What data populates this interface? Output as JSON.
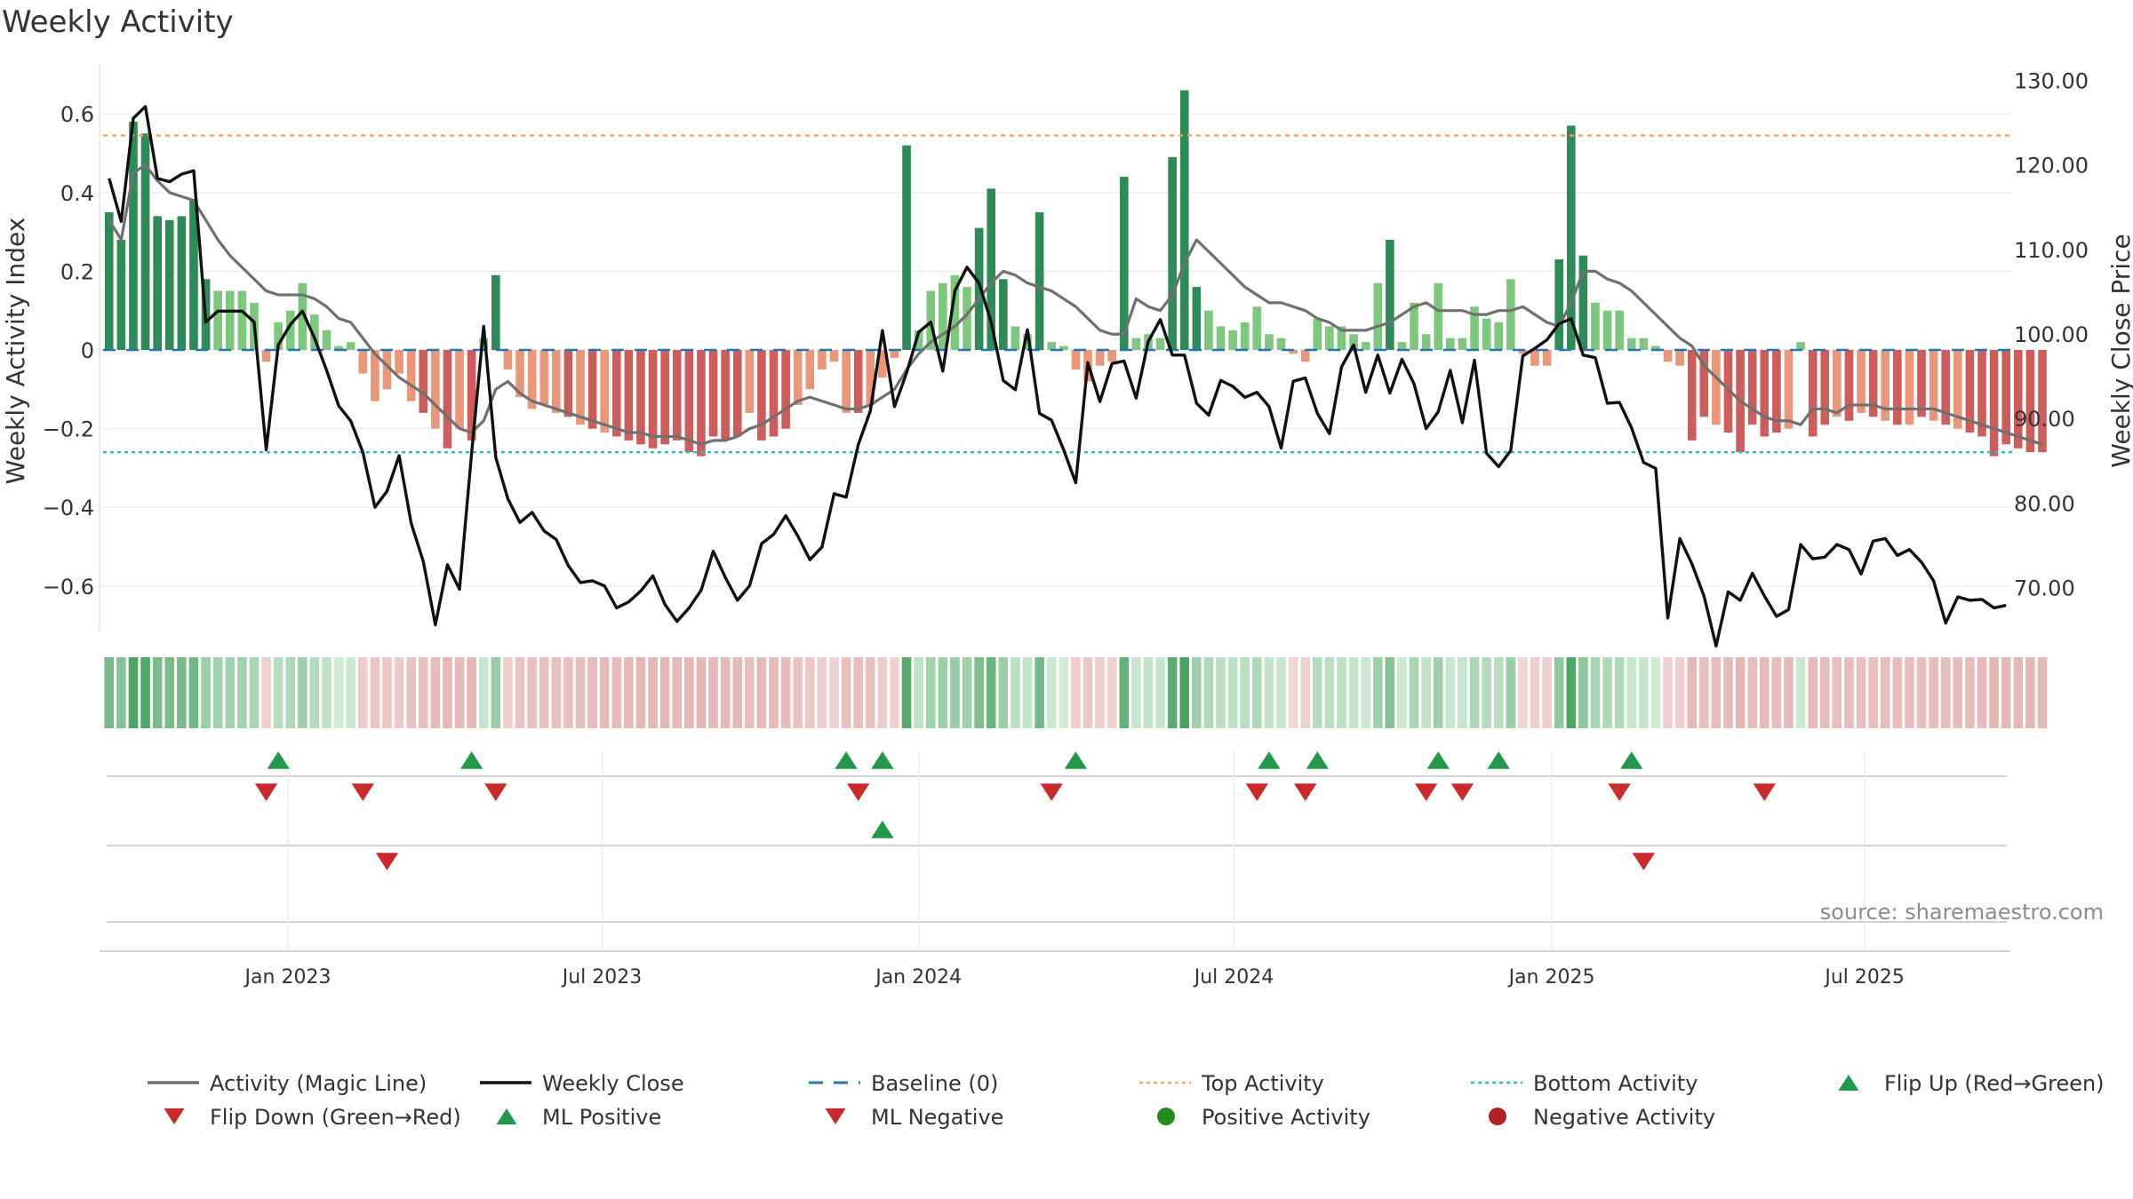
{
  "chart_data": {
    "type": "bar",
    "title": "Weekly Activity",
    "ylabel_left": "Weekly Activity Index",
    "ylabel_right": "Weekly Close Price",
    "source": "source: sharemaestro.com",
    "ylim_left": [
      -0.7,
      0.7
    ],
    "ylim_right": [
      64.0,
      132.0
    ],
    "left_ticks": [
      {
        "value": 0.6,
        "label": "0.6"
      },
      {
        "value": 0.4,
        "label": "0.4"
      },
      {
        "value": 0.2,
        "label": "0.2"
      },
      {
        "value": 0,
        "label": "0"
      },
      {
        "value": -0.2,
        "label": "−0.2"
      },
      {
        "value": -0.4,
        "label": "−0.4"
      },
      {
        "value": -0.6,
        "label": "−0.6"
      }
    ],
    "right_ticks": [
      {
        "value": 130,
        "label": "130.00"
      },
      {
        "value": 120,
        "label": "120.00"
      },
      {
        "value": 110,
        "label": "110.00"
      },
      {
        "value": 100,
        "label": "100.00"
      },
      {
        "value": 90,
        "label": "90.00"
      },
      {
        "value": 80,
        "label": "80.00"
      },
      {
        "value": 70,
        "label": "70.00"
      }
    ],
    "x_range_weeks": [
      0,
      158
    ],
    "x_ticks": [
      {
        "week": 15.3,
        "label": "Jan 2023"
      },
      {
        "week": 41.3,
        "label": "Jul 2023"
      },
      {
        "week": 67.5,
        "label": "Jan 2024"
      },
      {
        "week": 93.6,
        "label": "Jul 2024"
      },
      {
        "week": 119.9,
        "label": "Jan 2025"
      },
      {
        "week": 145.8,
        "label": "Jul 2025"
      }
    ],
    "top_activity": 0.545,
    "bottom_activity": -0.26,
    "baseline": 0,
    "activity": [
      0.35,
      0.28,
      0.58,
      0.55,
      0.34,
      0.33,
      0.34,
      0.38,
      0.18,
      0.15,
      0.15,
      0.15,
      0.12,
      -0.03,
      0.07,
      0.1,
      0.17,
      0.09,
      0.05,
      0.01,
      0.02,
      -0.06,
      -0.13,
      -0.1,
      -0.06,
      -0.13,
      -0.16,
      -0.2,
      -0.25,
      -0.2,
      -0.23,
      0.03,
      0.19,
      -0.05,
      -0.12,
      -0.15,
      -0.14,
      -0.16,
      -0.17,
      -0.19,
      -0.2,
      -0.21,
      -0.22,
      -0.23,
      -0.24,
      -0.25,
      -0.24,
      -0.23,
      -0.26,
      -0.27,
      -0.22,
      -0.23,
      -0.22,
      -0.16,
      -0.23,
      -0.22,
      -0.2,
      -0.14,
      -0.1,
      -0.05,
      -0.03,
      -0.16,
      -0.16,
      -0.14,
      -0.07,
      -0.02,
      0.52,
      0.05,
      0.15,
      0.17,
      0.19,
      0.16,
      0.31,
      0.41,
      0.18,
      0.06,
      0.04,
      0.35,
      0.02,
      0.01,
      -0.05,
      -0.08,
      -0.04,
      -0.03,
      0.44,
      0.03,
      0.04,
      0.03,
      0.49,
      0.66,
      0.16,
      0.1,
      0.06,
      0.05,
      0.07,
      0.11,
      0.04,
      0.03,
      -0.01,
      -0.03,
      0.08,
      0.06,
      0.06,
      0.04,
      0.02,
      0.17,
      0.28,
      0.02,
      0.12,
      0.04,
      0.17,
      0.03,
      0.03,
      0.11,
      0.08,
      0.07,
      0.18,
      -0.01,
      -0.04,
      -0.04,
      0.23,
      0.57,
      0.24,
      0.12,
      0.1,
      0.1,
      0.03,
      0.03,
      0.01,
      -0.03,
      -0.04,
      -0.23,
      -0.17,
      -0.19,
      -0.21,
      -0.26,
      -0.19,
      -0.22,
      -0.21,
      -0.2,
      0.02,
      -0.22,
      -0.19,
      -0.17,
      -0.18,
      -0.16,
      -0.17,
      -0.18,
      -0.19,
      -0.19,
      -0.17,
      -0.18,
      -0.19,
      -0.2,
      -0.21,
      -0.22,
      -0.27,
      -0.24,
      -0.25,
      -0.26,
      -0.26
    ],
    "magic_line": [
      0.33,
      0.28,
      0.45,
      0.47,
      0.43,
      0.4,
      0.39,
      0.38,
      0.33,
      0.28,
      0.24,
      0.21,
      0.18,
      0.15,
      0.14,
      0.14,
      0.14,
      0.13,
      0.11,
      0.08,
      0.07,
      0.03,
      -0.01,
      -0.04,
      -0.07,
      -0.09,
      -0.11,
      -0.14,
      -0.17,
      -0.2,
      -0.21,
      -0.18,
      -0.1,
      -0.08,
      -0.11,
      -0.13,
      -0.14,
      -0.15,
      -0.16,
      -0.17,
      -0.18,
      -0.19,
      -0.2,
      -0.21,
      -0.21,
      -0.22,
      -0.22,
      -0.22,
      -0.23,
      -0.24,
      -0.23,
      -0.23,
      -0.22,
      -0.2,
      -0.19,
      -0.17,
      -0.15,
      -0.13,
      -0.12,
      -0.13,
      -0.14,
      -0.15,
      -0.15,
      -0.14,
      -0.12,
      -0.1,
      -0.05,
      -0.01,
      0.02,
      0.04,
      0.06,
      0.09,
      0.13,
      0.17,
      0.2,
      0.19,
      0.17,
      0.16,
      0.15,
      0.13,
      0.11,
      0.08,
      0.05,
      0.04,
      0.04,
      0.13,
      0.11,
      0.1,
      0.14,
      0.22,
      0.28,
      0.25,
      0.22,
      0.19,
      0.16,
      0.14,
      0.12,
      0.12,
      0.11,
      0.1,
      0.08,
      0.07,
      0.05,
      0.05,
      0.05,
      0.06,
      0.07,
      0.09,
      0.11,
      0.12,
      0.1,
      0.1,
      0.1,
      0.09,
      0.09,
      0.1,
      0.1,
      0.11,
      0.09,
      0.07,
      0.06,
      0.12,
      0.2,
      0.2,
      0.18,
      0.17,
      0.15,
      0.12,
      0.09,
      0.06,
      0.03,
      0.01,
      -0.04,
      -0.07,
      -0.1,
      -0.13,
      -0.15,
      -0.17,
      -0.18,
      -0.18,
      -0.19,
      -0.15,
      -0.15,
      -0.16,
      -0.14,
      -0.14,
      -0.14,
      -0.15,
      -0.15,
      -0.15,
      -0.15,
      -0.15,
      -0.16,
      -0.17,
      -0.18,
      -0.19,
      -0.2,
      -0.21,
      -0.22,
      -0.23,
      -0.24
    ],
    "weekly_close": [
      118.4,
      113.3,
      125.5,
      126.9,
      118.4,
      118,
      118.9,
      119.3,
      101.4,
      102.7,
      102.7,
      102.7,
      101.4,
      86.3,
      98.7,
      101.1,
      102.7,
      99.5,
      95.7,
      91.5,
      89.7,
      86,
      79.5,
      81.4,
      85.6,
      77.6,
      73.1,
      65.6,
      72.7,
      69.8,
      85.9,
      100.9,
      85.4,
      80.5,
      77.7,
      78.9,
      76.7,
      75.7,
      72.6,
      70.6,
      70.8,
      70.2,
      67.6,
      68.3,
      69.6,
      71.4,
      68,
      66,
      67.6,
      69.7,
      74.3,
      71.2,
      68.5,
      70.2,
      75.2,
      76.3,
      78.5,
      76.1,
      73.3,
      74.8,
      81.1,
      80.7,
      86.9,
      90.9,
      100.4,
      91.4,
      95.4,
      100.2,
      101.4,
      95.6,
      105.1,
      107.9,
      106,
      101.4,
      94.5,
      93.4,
      100.5,
      90.6,
      89.8,
      86.3,
      82.4,
      96.6,
      92,
      96.5,
      96.8,
      92.4,
      99.1,
      101.7,
      97.5,
      97.5,
      91.8,
      90.4,
      94.5,
      93.8,
      92.5,
      93.1,
      91.4,
      86.5,
      94.4,
      94.8,
      90.6,
      88.2,
      96.1,
      98.7,
      93.1,
      97.5,
      93,
      97,
      94.1,
      88.8,
      90.8,
      95.7,
      89.5,
      96.9,
      85.9,
      84.3,
      86.2,
      97.4,
      98.3,
      99.3,
      101.2,
      101.8,
      97.5,
      97.2,
      91.8,
      91.9,
      88.9,
      84.8,
      84.1,
      66.4,
      75.8,
      72.8,
      69,
      63.1,
      69.5,
      68.5,
      71.7,
      69,
      66.6,
      67.4,
      75.1,
      73.4,
      73.6,
      75.1,
      74.5,
      71.6,
      75.5,
      75.8,
      73.8,
      74.5,
      73,
      70.8,
      65.8,
      68.9,
      68.5,
      68.6,
      67.6,
      67.9
    ],
    "strip": [
      0.35,
      0.28,
      0.58,
      0.55,
      0.34,
      0.33,
      0.34,
      0.38,
      0.18,
      0.15,
      0.15,
      0.15,
      0.12,
      -0.03,
      0.07,
      0.1,
      0.17,
      0.09,
      0.05,
      0.01,
      0.02,
      -0.06,
      -0.13,
      -0.1,
      -0.06,
      -0.13,
      -0.16,
      -0.2,
      -0.25,
      -0.2,
      -0.23,
      0.03,
      0.19,
      -0.05,
      -0.12,
      -0.15,
      -0.14,
      -0.16,
      -0.17,
      -0.19,
      -0.2,
      -0.21,
      -0.22,
      -0.23,
      -0.24,
      -0.25,
      -0.24,
      -0.23,
      -0.26,
      -0.27,
      -0.22,
      -0.23,
      -0.22,
      -0.16,
      -0.23,
      -0.22,
      -0.2,
      -0.14,
      -0.1,
      -0.05,
      -0.03,
      -0.16,
      -0.16,
      -0.14,
      -0.07,
      -0.02,
      0.52,
      0.05,
      0.15,
      0.17,
      0.19,
      0.16,
      0.31,
      0.41,
      0.18,
      0.06,
      0.04,
      0.35,
      0.02,
      0.01,
      -0.05,
      -0.08,
      -0.04,
      -0.03,
      0.44,
      0.03,
      0.04,
      0.03,
      0.49,
      0.66,
      0.16,
      0.1,
      0.06,
      0.05,
      0.07,
      0.11,
      0.04,
      0.03,
      -0.01,
      -0.03,
      0.08,
      0.06,
      0.06,
      0.04,
      0.02,
      0.17,
      0.28,
      0.02,
      0.12,
      0.04,
      0.17,
      0.03,
      0.03,
      0.11,
      0.08,
      0.07,
      0.18,
      -0.01,
      -0.04,
      -0.04,
      0.23,
      0.57,
      0.24,
      0.12,
      0.1,
      0.1,
      0.03,
      0.03,
      0.01,
      -0.03,
      -0.04,
      -0.23,
      -0.17,
      -0.19,
      -0.21,
      -0.26,
      -0.19,
      -0.22,
      -0.21,
      -0.2,
      0.02,
      -0.22,
      -0.19,
      -0.17,
      -0.18,
      -0.16,
      -0.17,
      -0.18,
      -0.19,
      -0.19,
      -0.17,
      -0.18,
      -0.19,
      -0.2,
      -0.21,
      -0.22,
      -0.27,
      -0.24,
      -0.25,
      -0.26,
      -0.26
    ],
    "flip_up_weeks": [
      14.5,
      30.5,
      61.5,
      64.5,
      80.5,
      96.5,
      100.5,
      110.5,
      115.5,
      126.5
    ],
    "flip_down_weeks": [
      13.5,
      21.5,
      32.5,
      62.5,
      78.5,
      95.5,
      99.5,
      109.5,
      112.5,
      125.5,
      137.5
    ],
    "ml_positive_weeks": [
      64.5
    ],
    "ml_negative_weeks": [
      23.5,
      127.5
    ],
    "colors": {
      "strong_green": "#2e8b57",
      "light_green": "#7fc67f",
      "strong_red": "#cd5c5c",
      "light_red": "#e9967a",
      "magic_line": "#707070",
      "close_line": "#111111",
      "baseline": "#1f77b4",
      "top_activity": "#f4a460",
      "bottom_activity": "#20c3c8",
      "marker_up": "#22994a",
      "marker_down": "#cc2a2a",
      "positive_dot": "#228b22",
      "negative_dot": "#b22222"
    },
    "legend": [
      {
        "label": "Activity (Magic Line)",
        "kind": "line",
        "color": "#707070"
      },
      {
        "label": "Weekly Close",
        "kind": "line",
        "color": "#111111"
      },
      {
        "label": "Baseline (0)",
        "kind": "dashed",
        "color": "#1f77b4"
      },
      {
        "label": "Top Activity",
        "kind": "dotted",
        "color": "#f4a460"
      },
      {
        "label": "Bottom Activity",
        "kind": "dotted",
        "color": "#20c3c8"
      },
      {
        "label": "Flip Up (Red→Green)",
        "kind": "triangle-up",
        "color": "#22994a"
      },
      {
        "label": "Flip Down (Green→Red)",
        "kind": "triangle-down",
        "color": "#cc2a2a"
      },
      {
        "label": "ML Positive",
        "kind": "triangle-up",
        "color": "#22994a"
      },
      {
        "label": "ML Negative",
        "kind": "triangle-down",
        "color": "#cc2a2a"
      },
      {
        "label": "Positive Activity",
        "kind": "dot",
        "color": "#228b22"
      },
      {
        "label": "Negative Activity",
        "kind": "dot",
        "color": "#b22222"
      }
    ]
  }
}
